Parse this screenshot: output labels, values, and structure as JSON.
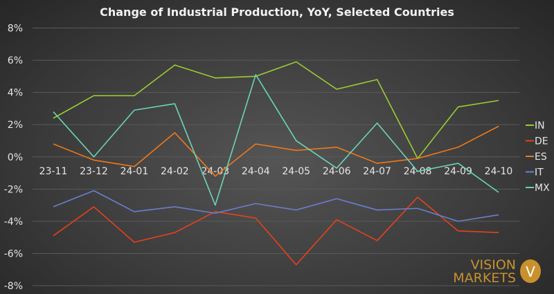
{
  "chart_data": {
    "type": "line",
    "title": "Change of Industrial Production, YoY, Selected Countries",
    "categories": [
      "23-11",
      "23-12",
      "24-01",
      "24-02",
      "24-03",
      "24-04",
      "24-05",
      "24-06",
      "24-07",
      "24-08",
      "24-09",
      "24-10"
    ],
    "yticks": [
      "8%",
      "6%",
      "4%",
      "2%",
      "0%",
      "-2%",
      "-4%",
      "-6%",
      "-8%"
    ],
    "ylim": [
      -8,
      8
    ],
    "ylabel": "",
    "xlabel": "",
    "grid": true,
    "legend": "right",
    "series": [
      {
        "name": "IN",
        "color": "#9acd32",
        "values": [
          2.4,
          3.8,
          3.8,
          5.7,
          4.9,
          5.0,
          5.9,
          4.2,
          4.8,
          -0.1,
          3.1,
          3.5
        ]
      },
      {
        "name": "DE",
        "color": "#e8401c",
        "values": [
          -4.9,
          -3.1,
          -5.3,
          -4.7,
          -3.4,
          -3.8,
          -6.7,
          -3.9,
          -5.2,
          -2.5,
          -4.6,
          -4.7
        ]
      },
      {
        "name": "ES",
        "color": "#f07818",
        "values": [
          0.8,
          -0.2,
          -0.6,
          1.5,
          -1.2,
          0.8,
          0.4,
          0.6,
          -0.4,
          -0.1,
          0.6,
          1.9
        ]
      },
      {
        "name": "IT",
        "color": "#6a7fd0",
        "values": [
          -3.1,
          -2.1,
          -3.4,
          -3.1,
          -3.5,
          -2.9,
          -3.3,
          -2.6,
          -3.3,
          -3.2,
          -4.0,
          -3.6
        ]
      },
      {
        "name": "MX",
        "color": "#6cd4b8",
        "values": [
          2.8,
          0.0,
          2.9,
          3.3,
          -3.0,
          5.1,
          1.0,
          -0.7,
          2.1,
          -0.9,
          -0.4,
          -2.2
        ]
      }
    ]
  },
  "logo": {
    "line1": "VISION",
    "line2": "MARKETS",
    "mark": "V"
  }
}
